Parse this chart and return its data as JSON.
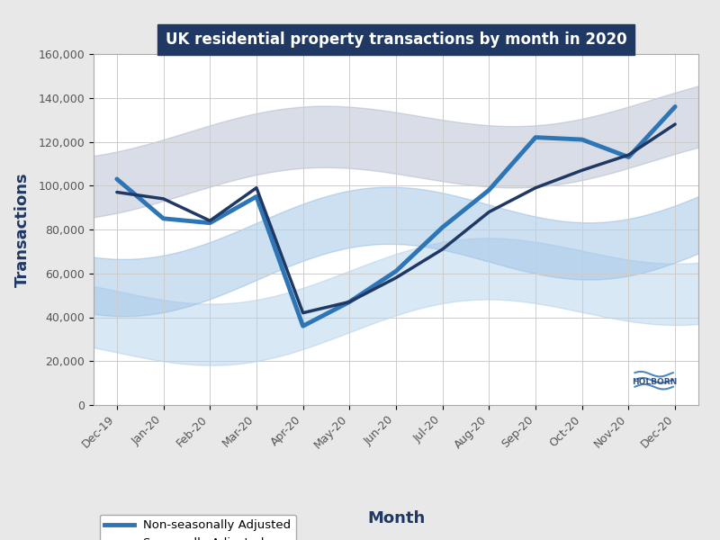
{
  "title": "UK residential property transactions by month in 2020",
  "title_bg_color": "#1f3864",
  "title_text_color": "#ffffff",
  "xlabel": "Month",
  "ylabel": "Transactions",
  "bg_color": "#e8e8e8",
  "plot_bg_color": "#ffffff",
  "grid_color": "#cccccc",
  "months": [
    "Dec-19",
    "Jan-20",
    "Feb-20",
    "Mar-20",
    "Apr-20",
    "May-20",
    "Jun-20",
    "Jul-20",
    "Aug-20",
    "Sep-20",
    "Oct-20",
    "Nov-20",
    "Dec-20"
  ],
  "non_seasonal": [
    103000,
    85000,
    83000,
    95000,
    36000,
    47000,
    61000,
    81000,
    98000,
    122000,
    121000,
    113000,
    136000
  ],
  "seasonal": [
    97000,
    94000,
    84000,
    99000,
    42000,
    47000,
    58000,
    71000,
    88000,
    99000,
    107000,
    114000,
    128000
  ],
  "non_seasonal_color": "#2e75b6",
  "seasonal_color": "#1f3864",
  "ylim": [
    0,
    160000
  ],
  "yticks": [
    0,
    20000,
    40000,
    60000,
    80000,
    100000,
    120000,
    140000,
    160000
  ],
  "non_seasonal_lw": 3.5,
  "seasonal_lw": 2.5
}
